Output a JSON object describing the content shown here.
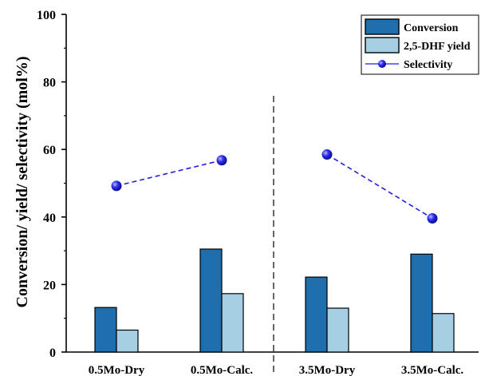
{
  "chart_data": {
    "type": "bar",
    "categories": [
      "0.5Mo-Dry",
      "0.5Mo-Calc.",
      "3.5Mo-Dry",
      "3.5Mo-Calc."
    ],
    "ylabel": "Conversion/ yield/ selectivity (mol%)",
    "ylim": [
      0,
      100
    ],
    "yticks": [
      "0",
      "20",
      "40",
      "60",
      "80",
      "100"
    ],
    "series": [
      {
        "name": "Conversion",
        "values": [
          13.2,
          30.5,
          22.2,
          29.0
        ],
        "color": "#1f6fae"
      },
      {
        "name": "2,5-DHF yield",
        "values": [
          6.5,
          17.3,
          13.0,
          11.4
        ],
        "color": "#a6cfe4"
      }
    ],
    "line_series": [
      {
        "name": "Selectivity",
        "segments": [
          [
            0,
            1
          ],
          [
            2,
            3
          ]
        ],
        "values": [
          49.2,
          56.8,
          58.5,
          39.6
        ],
        "color": "#1f1fe0"
      }
    ],
    "legend_position": "top-right",
    "divider": "dashed vertical line between 0.5Mo-Calc. and 3.5Mo-Dry",
    "grid": false
  }
}
